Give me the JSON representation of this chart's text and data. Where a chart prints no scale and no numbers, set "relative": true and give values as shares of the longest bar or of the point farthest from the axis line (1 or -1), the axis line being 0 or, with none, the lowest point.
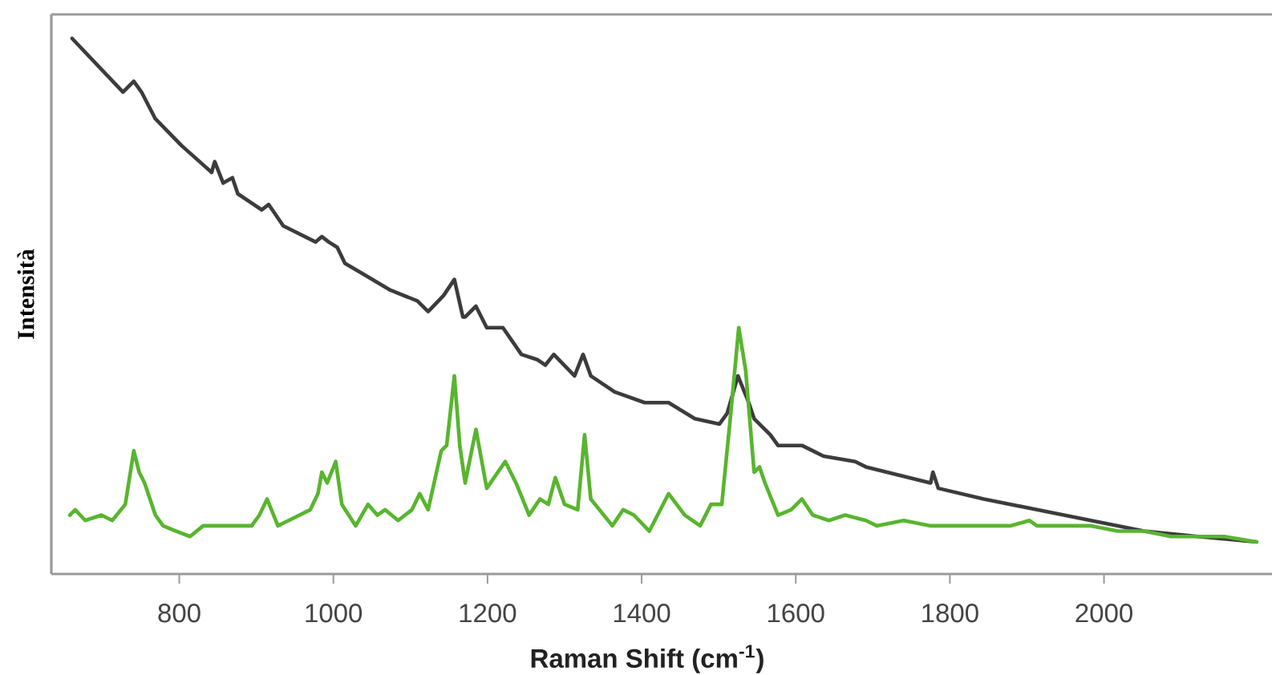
{
  "chart_data": {
    "type": "line",
    "relative": true,
    "xlabel": "Raman Shift (cm$^{-1}$)",
    "ylabel": "Intensità",
    "xlim": [
      634,
      2218
    ],
    "xticks": [
      800,
      1000,
      1200,
      1400,
      1600,
      1800,
      2000
    ],
    "series": [
      {
        "color": "#3c3c3c",
        "x": [
          661,
          727,
          741,
          751,
          769,
          803,
          842,
          846,
          857,
          869,
          876,
          907,
          916,
          935,
          977,
          985,
          994,
          1005,
          1015,
          1039,
          1074,
          1109,
          1123,
          1143,
          1157,
          1168,
          1171,
          1185,
          1199,
          1220,
          1244,
          1265,
          1275,
          1286,
          1313,
          1324,
          1334,
          1365,
          1404,
          1435,
          1469,
          1501,
          1511,
          1525,
          1539,
          1546,
          1567,
          1577,
          1608,
          1636,
          1677,
          1691,
          1775,
          1778,
          1785,
          1844,
          1913,
          1983,
          2052,
          2122,
          2198
        ],
        "values": [
          1.0,
          0.9,
          0.92,
          0.9,
          0.85,
          0.8,
          0.75,
          0.77,
          0.73,
          0.74,
          0.71,
          0.68,
          0.69,
          0.65,
          0.62,
          0.63,
          0.62,
          0.61,
          0.58,
          0.56,
          0.53,
          0.51,
          0.49,
          0.52,
          0.55,
          0.48,
          0.48,
          0.5,
          0.46,
          0.46,
          0.41,
          0.4,
          0.39,
          0.41,
          0.37,
          0.41,
          0.37,
          0.34,
          0.32,
          0.32,
          0.29,
          0.28,
          0.3,
          0.37,
          0.32,
          0.29,
          0.26,
          0.24,
          0.24,
          0.22,
          0.21,
          0.2,
          0.17,
          0.19,
          0.16,
          0.14,
          0.12,
          0.1,
          0.08,
          0.07,
          0.06
        ]
      },
      {
        "color": "#58b52e",
        "x": [
          658,
          665,
          678,
          699,
          713,
          730,
          741,
          748,
          755,
          769,
          779,
          796,
          814,
          831,
          866,
          894,
          904,
          914,
          928,
          942,
          970,
          980,
          985,
          992,
          1003,
          1011,
          1029,
          1045,
          1057,
          1067,
          1084,
          1102,
          1112,
          1123,
          1140,
          1147,
          1157,
          1164,
          1171,
          1185,
          1199,
          1223,
          1237,
          1254,
          1268,
          1279,
          1288,
          1300,
          1317,
          1326,
          1334,
          1362,
          1376,
          1390,
          1410,
          1435,
          1456,
          1476,
          1490,
          1504,
          1515,
          1526,
          1535,
          1546,
          1553,
          1560,
          1577,
          1594,
          1608,
          1622,
          1643,
          1664,
          1691,
          1705,
          1740,
          1775,
          1809,
          1844,
          1879,
          1903,
          1913,
          1948,
          1983,
          2018,
          2052,
          2087,
          2122,
          2156,
          2198
        ],
        "values": [
          0.11,
          0.12,
          0.1,
          0.11,
          0.1,
          0.13,
          0.23,
          0.19,
          0.17,
          0.11,
          0.09,
          0.08,
          0.07,
          0.09,
          0.09,
          0.09,
          0.11,
          0.14,
          0.09,
          0.1,
          0.12,
          0.15,
          0.19,
          0.17,
          0.21,
          0.13,
          0.09,
          0.13,
          0.11,
          0.12,
          0.1,
          0.12,
          0.15,
          0.12,
          0.23,
          0.24,
          0.37,
          0.24,
          0.17,
          0.27,
          0.16,
          0.21,
          0.17,
          0.11,
          0.14,
          0.13,
          0.18,
          0.13,
          0.12,
          0.26,
          0.14,
          0.09,
          0.12,
          0.11,
          0.08,
          0.15,
          0.11,
          0.09,
          0.13,
          0.13,
          0.29,
          0.46,
          0.38,
          0.19,
          0.2,
          0.17,
          0.11,
          0.12,
          0.14,
          0.11,
          0.1,
          0.11,
          0.1,
          0.09,
          0.1,
          0.09,
          0.09,
          0.09,
          0.09,
          0.1,
          0.09,
          0.09,
          0.09,
          0.08,
          0.08,
          0.07,
          0.07,
          0.07,
          0.06
        ]
      }
    ]
  }
}
